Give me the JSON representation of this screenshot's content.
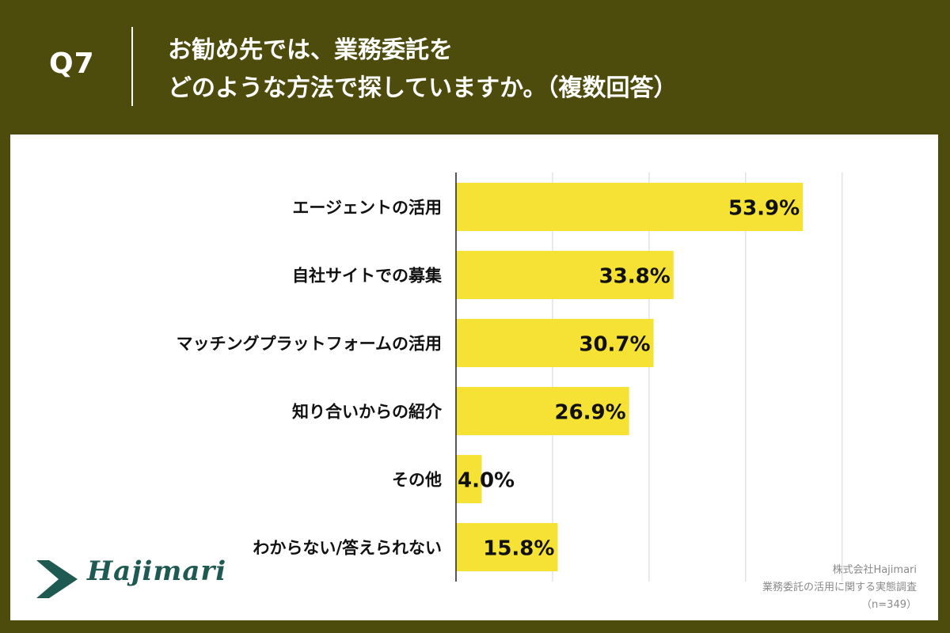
{
  "header": {
    "question_label": "Q7",
    "title_line1": "お勧め先では、業務委託を",
    "title_line2": "どのような方法で探していますか。（複数回答）"
  },
  "colors": {
    "background": "#4e4c0d",
    "bar": "#f6e235",
    "logo": "#1f5a52"
  },
  "chart_data": {
    "type": "bar",
    "orientation": "horizontal",
    "categories": [
      "エージェントの活用",
      "自社サイトでの募集",
      "マッチングプラットフォームの活用",
      "知り合いからの紹介",
      "その他",
      "わからない/答えられない"
    ],
    "values": [
      53.9,
      33.8,
      30.7,
      26.9,
      4.0,
      15.8
    ],
    "value_labels": [
      "53.9%",
      "33.8%",
      "30.7%",
      "26.9%",
      "4.0%",
      "15.8%"
    ],
    "unit": "%",
    "xlim": [
      0,
      60
    ],
    "grid": true
  },
  "logo": {
    "text": "Hajimari",
    "icon": "chevron-right-icon"
  },
  "source": {
    "company": "株式会社Hajimari",
    "survey": "業務委託の活用に関する実態調査",
    "sample": "（n=349）"
  }
}
